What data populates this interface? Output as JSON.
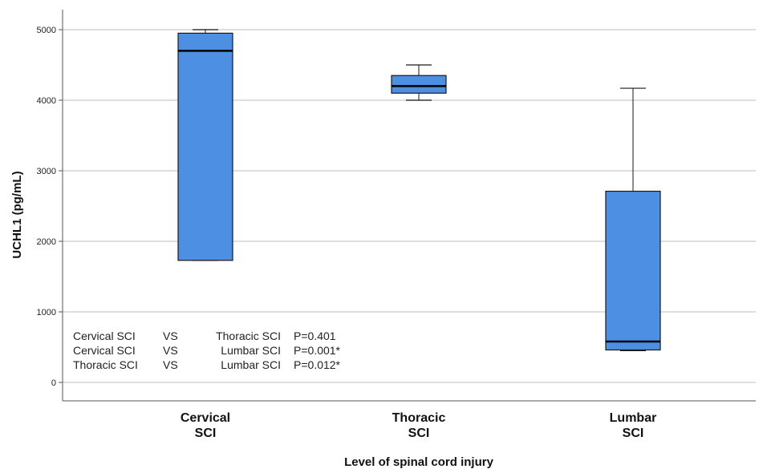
{
  "chart_data": {
    "type": "box",
    "xlabel": "Level of spinal cord injury",
    "ylabel": "UCHL1 (pg/mL)",
    "ylim": [
      -300,
      5300
    ],
    "yticks": [
      0,
      1000,
      2000,
      3000,
      4000,
      5000
    ],
    "grid": "horizontal",
    "categories": [
      {
        "line1": "Cervical",
        "line2": "SCI"
      },
      {
        "line1": "Thoracic",
        "line2": "SCI"
      },
      {
        "line1": "Lumbar",
        "line2": "SCI"
      }
    ],
    "boxes": [
      {
        "min": 1730,
        "q1": 1730,
        "median": 4700,
        "q3": 4950,
        "max": 5000
      },
      {
        "min": 4000,
        "q1": 4100,
        "median": 4200,
        "q3": 4350,
        "max": 4500
      },
      {
        "min": 450,
        "q1": 460,
        "median": 580,
        "q3": 2710,
        "max": 4170
      }
    ],
    "annotations": [
      {
        "a": "Cervical SCI",
        "vs": "VS",
        "b": "Thoracic SCI",
        "p": "P=0.401"
      },
      {
        "a": "Cervical SCI",
        "vs": "VS",
        "b": "Lumbar SCI",
        "p": "P=0.001*"
      },
      {
        "a": "Thoracic SCI",
        "vs": "VS",
        "b": "Lumbar SCI",
        "p": "P=0.012*"
      }
    ],
    "colors": {
      "box_fill": "#4d8fe2",
      "box_stroke": "#1a1a1a",
      "grid": "#d3d3d3"
    }
  }
}
